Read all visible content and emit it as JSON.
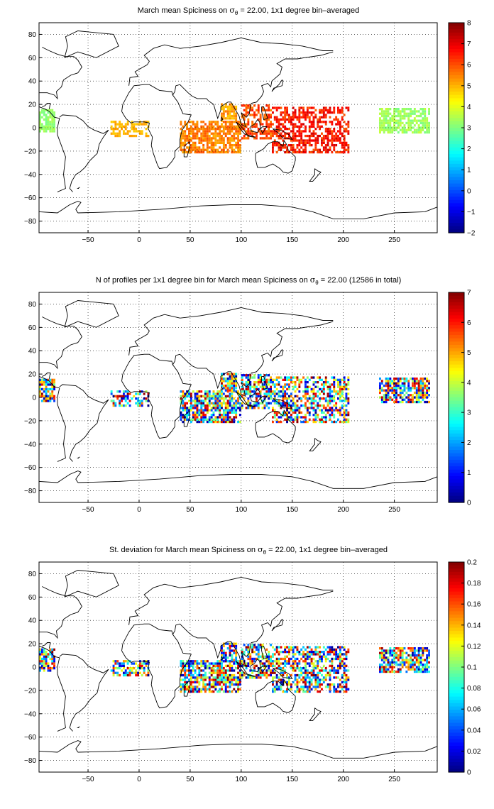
{
  "panels": [
    {
      "id": "spiciness",
      "title": "March mean Spiciness on σθ = 22.00, 1x1 degree bin–averaged",
      "title_parts": [
        "March mean Spiciness on ",
        "σ",
        "θ",
        " = 22.00, 1x1 degree bin–averaged"
      ],
      "colorbar": {
        "min": -2,
        "max": 8,
        "ticks": [
          "8",
          "7",
          "6",
          "5",
          "4",
          "3",
          "2",
          "1",
          "0",
          "−1",
          "−2"
        ]
      }
    },
    {
      "id": "profiles",
      "title": "N of profiles per 1x1 degree bin for March mean Spiciness on σθ = 22.00 (12586 in total)",
      "title_parts": [
        "N of profiles per 1x1 degree bin for March mean Spiciness on ",
        "σ",
        "θ",
        " = 22.00 (12586 in total)"
      ],
      "colorbar": {
        "min": 0,
        "max": 7,
        "ticks": [
          "7",
          "6",
          "5",
          "4",
          "3",
          "2",
          "1",
          "0"
        ]
      }
    },
    {
      "id": "stdev",
      "title": "St. deviation for March mean Spiciness on σθ = 22.00, 1x1 degree bin–averaged",
      "title_parts": [
        "St. deviation for March mean Spiciness on ",
        "σ",
        "θ",
        " = 22.00, 1x1 degree bin–averaged"
      ],
      "colorbar": {
        "min": 0,
        "max": 0.2,
        "ticks": [
          "0.2",
          "0.18",
          "0.16",
          "0.14",
          "0.12",
          "0.1",
          "0.08",
          "0.06",
          "0.04",
          "0.02",
          "0"
        ]
      }
    }
  ],
  "axes": {
    "x_ticks": [
      "−50",
      "0",
      "50",
      "100",
      "150",
      "200",
      "250"
    ],
    "y_ticks": [
      "80",
      "60",
      "40",
      "20",
      "0",
      "−20",
      "−40",
      "−60",
      "−80"
    ],
    "xlim": [
      -98,
      292
    ],
    "ylim": [
      -90,
      90
    ]
  },
  "colormap": "jet"
}
